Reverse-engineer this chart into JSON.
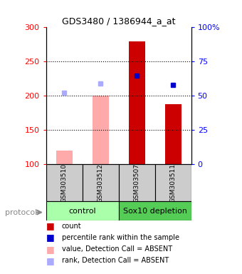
{
  "title": "GDS3480 / 1386944_a_at",
  "samples": [
    "GSM303510",
    "GSM303512",
    "GSM303507",
    "GSM303511"
  ],
  "bar_values": [
    120,
    200,
    280,
    188
  ],
  "bar_colors": [
    "#ffaaaa",
    "#ffaaaa",
    "#cc0000",
    "#cc0000"
  ],
  "bar_bottom": 100,
  "rank_values": [
    205,
    218,
    230,
    216
  ],
  "rank_is_absent": [
    true,
    true,
    false,
    false
  ],
  "ylim": [
    100,
    300
  ],
  "y_left_ticks": [
    100,
    150,
    200,
    250,
    300
  ],
  "y_right_ticks": [
    0,
    25,
    50,
    75,
    100
  ],
  "y_right_labels": [
    "0",
    "25",
    "50",
    "75",
    "100%"
  ],
  "dotted_lines": [
    150,
    200,
    250
  ],
  "legend_items": [
    {
      "color": "#cc0000",
      "label": "count"
    },
    {
      "color": "#0000cc",
      "label": "percentile rank within the sample"
    },
    {
      "color": "#ffaaaa",
      "label": "value, Detection Call = ABSENT"
    },
    {
      "color": "#aaaaff",
      "label": "rank, Detection Call = ABSENT"
    }
  ],
  "protocol_label": "protocol",
  "group_control_color": "#aaffaa",
  "group_sox10_color": "#55cc55",
  "bg_color": "#cccccc",
  "plot_bg": "#ffffff"
}
